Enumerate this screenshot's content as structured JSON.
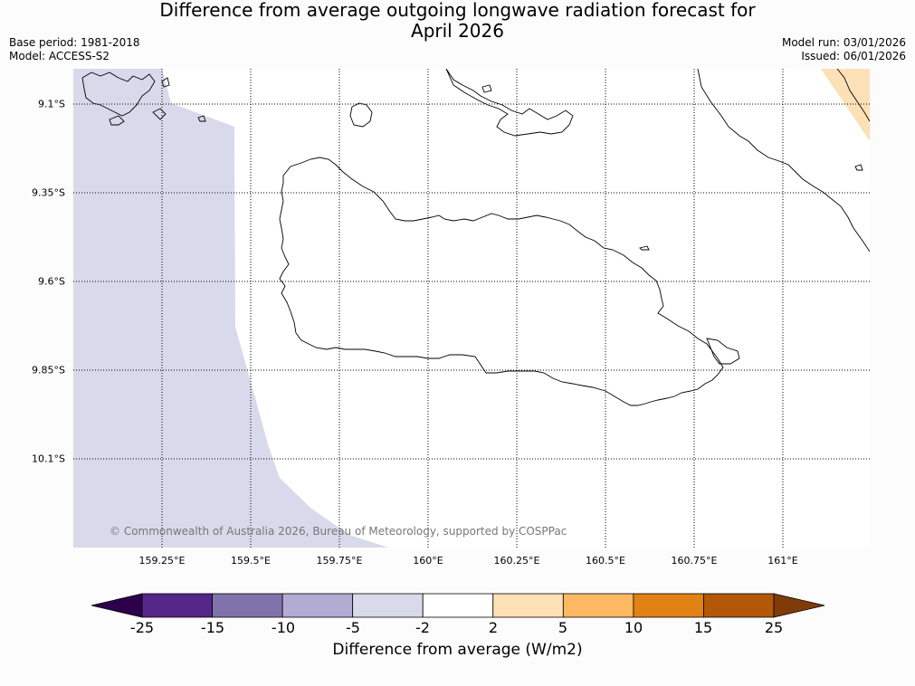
{
  "title": {
    "line1": "Difference from average outgoing longwave radiation forecast for",
    "line2": "April 2026"
  },
  "meta_left": {
    "base_period": "Base period: 1981-2018",
    "model": "Model: ACCESS-S2"
  },
  "meta_right": {
    "model_run": "Model run: 03/01/2026",
    "issued": "Issued: 06/01/2026"
  },
  "map": {
    "lat_labels": [
      "9.1°S",
      "9.35°S",
      "9.6°S",
      "9.85°S",
      "10.1°S"
    ],
    "lon_labels": [
      "159.25°E",
      "159.5°E",
      "159.75°E",
      "160°E",
      "160.25°E",
      "160.5°E",
      "160.75°E",
      "161°E"
    ],
    "copyright": "© Commonwealth of Australia 2026, Bureau of Meteorology, supported by COSPPac"
  },
  "colorbar": {
    "title": "Difference from average (W/m2)",
    "ticks": [
      "-25",
      "-15",
      "-10",
      "-5",
      "-2",
      "2",
      "5",
      "10",
      "15",
      "25"
    ],
    "colors": [
      "#2d004b",
      "#542788",
      "#8073ac",
      "#b2abd2",
      "#d8daeb",
      "#ffffff",
      "#fee0b6",
      "#fdb863",
      "#e08214",
      "#b35806",
      "#7f3b08"
    ]
  }
}
